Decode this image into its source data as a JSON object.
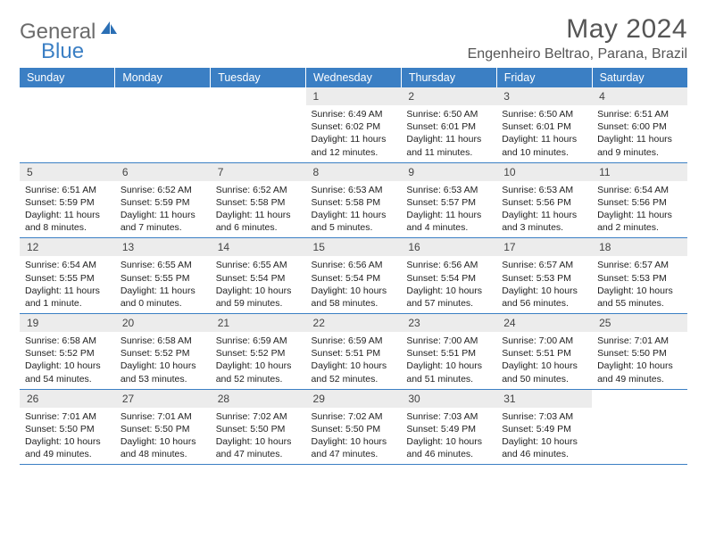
{
  "logo": {
    "text1": "General",
    "text2": "Blue"
  },
  "title": "May 2024",
  "location": "Engenheiro Beltrao, Parana, Brazil",
  "dayHeaders": [
    "Sunday",
    "Monday",
    "Tuesday",
    "Wednesday",
    "Thursday",
    "Friday",
    "Saturday"
  ],
  "colors": {
    "headerBg": "#3b7fc4",
    "headerText": "#ffffff",
    "dayNumBg": "#ececec",
    "borderColor": "#3b7fc4"
  },
  "weeks": [
    [
      {
        "day": "",
        "sunrise": "",
        "sunset": "",
        "daylight": ""
      },
      {
        "day": "",
        "sunrise": "",
        "sunset": "",
        "daylight": ""
      },
      {
        "day": "",
        "sunrise": "",
        "sunset": "",
        "daylight": ""
      },
      {
        "day": "1",
        "sunrise": "Sunrise: 6:49 AM",
        "sunset": "Sunset: 6:02 PM",
        "daylight": "Daylight: 11 hours and 12 minutes."
      },
      {
        "day": "2",
        "sunrise": "Sunrise: 6:50 AM",
        "sunset": "Sunset: 6:01 PM",
        "daylight": "Daylight: 11 hours and 11 minutes."
      },
      {
        "day": "3",
        "sunrise": "Sunrise: 6:50 AM",
        "sunset": "Sunset: 6:01 PM",
        "daylight": "Daylight: 11 hours and 10 minutes."
      },
      {
        "day": "4",
        "sunrise": "Sunrise: 6:51 AM",
        "sunset": "Sunset: 6:00 PM",
        "daylight": "Daylight: 11 hours and 9 minutes."
      }
    ],
    [
      {
        "day": "5",
        "sunrise": "Sunrise: 6:51 AM",
        "sunset": "Sunset: 5:59 PM",
        "daylight": "Daylight: 11 hours and 8 minutes."
      },
      {
        "day": "6",
        "sunrise": "Sunrise: 6:52 AM",
        "sunset": "Sunset: 5:59 PM",
        "daylight": "Daylight: 11 hours and 7 minutes."
      },
      {
        "day": "7",
        "sunrise": "Sunrise: 6:52 AM",
        "sunset": "Sunset: 5:58 PM",
        "daylight": "Daylight: 11 hours and 6 minutes."
      },
      {
        "day": "8",
        "sunrise": "Sunrise: 6:53 AM",
        "sunset": "Sunset: 5:58 PM",
        "daylight": "Daylight: 11 hours and 5 minutes."
      },
      {
        "day": "9",
        "sunrise": "Sunrise: 6:53 AM",
        "sunset": "Sunset: 5:57 PM",
        "daylight": "Daylight: 11 hours and 4 minutes."
      },
      {
        "day": "10",
        "sunrise": "Sunrise: 6:53 AM",
        "sunset": "Sunset: 5:56 PM",
        "daylight": "Daylight: 11 hours and 3 minutes."
      },
      {
        "day": "11",
        "sunrise": "Sunrise: 6:54 AM",
        "sunset": "Sunset: 5:56 PM",
        "daylight": "Daylight: 11 hours and 2 minutes."
      }
    ],
    [
      {
        "day": "12",
        "sunrise": "Sunrise: 6:54 AM",
        "sunset": "Sunset: 5:55 PM",
        "daylight": "Daylight: 11 hours and 1 minute."
      },
      {
        "day": "13",
        "sunrise": "Sunrise: 6:55 AM",
        "sunset": "Sunset: 5:55 PM",
        "daylight": "Daylight: 11 hours and 0 minutes."
      },
      {
        "day": "14",
        "sunrise": "Sunrise: 6:55 AM",
        "sunset": "Sunset: 5:54 PM",
        "daylight": "Daylight: 10 hours and 59 minutes."
      },
      {
        "day": "15",
        "sunrise": "Sunrise: 6:56 AM",
        "sunset": "Sunset: 5:54 PM",
        "daylight": "Daylight: 10 hours and 58 minutes."
      },
      {
        "day": "16",
        "sunrise": "Sunrise: 6:56 AM",
        "sunset": "Sunset: 5:54 PM",
        "daylight": "Daylight: 10 hours and 57 minutes."
      },
      {
        "day": "17",
        "sunrise": "Sunrise: 6:57 AM",
        "sunset": "Sunset: 5:53 PM",
        "daylight": "Daylight: 10 hours and 56 minutes."
      },
      {
        "day": "18",
        "sunrise": "Sunrise: 6:57 AM",
        "sunset": "Sunset: 5:53 PM",
        "daylight": "Daylight: 10 hours and 55 minutes."
      }
    ],
    [
      {
        "day": "19",
        "sunrise": "Sunrise: 6:58 AM",
        "sunset": "Sunset: 5:52 PM",
        "daylight": "Daylight: 10 hours and 54 minutes."
      },
      {
        "day": "20",
        "sunrise": "Sunrise: 6:58 AM",
        "sunset": "Sunset: 5:52 PM",
        "daylight": "Daylight: 10 hours and 53 minutes."
      },
      {
        "day": "21",
        "sunrise": "Sunrise: 6:59 AM",
        "sunset": "Sunset: 5:52 PM",
        "daylight": "Daylight: 10 hours and 52 minutes."
      },
      {
        "day": "22",
        "sunrise": "Sunrise: 6:59 AM",
        "sunset": "Sunset: 5:51 PM",
        "daylight": "Daylight: 10 hours and 52 minutes."
      },
      {
        "day": "23",
        "sunrise": "Sunrise: 7:00 AM",
        "sunset": "Sunset: 5:51 PM",
        "daylight": "Daylight: 10 hours and 51 minutes."
      },
      {
        "day": "24",
        "sunrise": "Sunrise: 7:00 AM",
        "sunset": "Sunset: 5:51 PM",
        "daylight": "Daylight: 10 hours and 50 minutes."
      },
      {
        "day": "25",
        "sunrise": "Sunrise: 7:01 AM",
        "sunset": "Sunset: 5:50 PM",
        "daylight": "Daylight: 10 hours and 49 minutes."
      }
    ],
    [
      {
        "day": "26",
        "sunrise": "Sunrise: 7:01 AM",
        "sunset": "Sunset: 5:50 PM",
        "daylight": "Daylight: 10 hours and 49 minutes."
      },
      {
        "day": "27",
        "sunrise": "Sunrise: 7:01 AM",
        "sunset": "Sunset: 5:50 PM",
        "daylight": "Daylight: 10 hours and 48 minutes."
      },
      {
        "day": "28",
        "sunrise": "Sunrise: 7:02 AM",
        "sunset": "Sunset: 5:50 PM",
        "daylight": "Daylight: 10 hours and 47 minutes."
      },
      {
        "day": "29",
        "sunrise": "Sunrise: 7:02 AM",
        "sunset": "Sunset: 5:50 PM",
        "daylight": "Daylight: 10 hours and 47 minutes."
      },
      {
        "day": "30",
        "sunrise": "Sunrise: 7:03 AM",
        "sunset": "Sunset: 5:49 PM",
        "daylight": "Daylight: 10 hours and 46 minutes."
      },
      {
        "day": "31",
        "sunrise": "Sunrise: 7:03 AM",
        "sunset": "Sunset: 5:49 PM",
        "daylight": "Daylight: 10 hours and 46 minutes."
      },
      {
        "day": "",
        "sunrise": "",
        "sunset": "",
        "daylight": ""
      }
    ]
  ]
}
